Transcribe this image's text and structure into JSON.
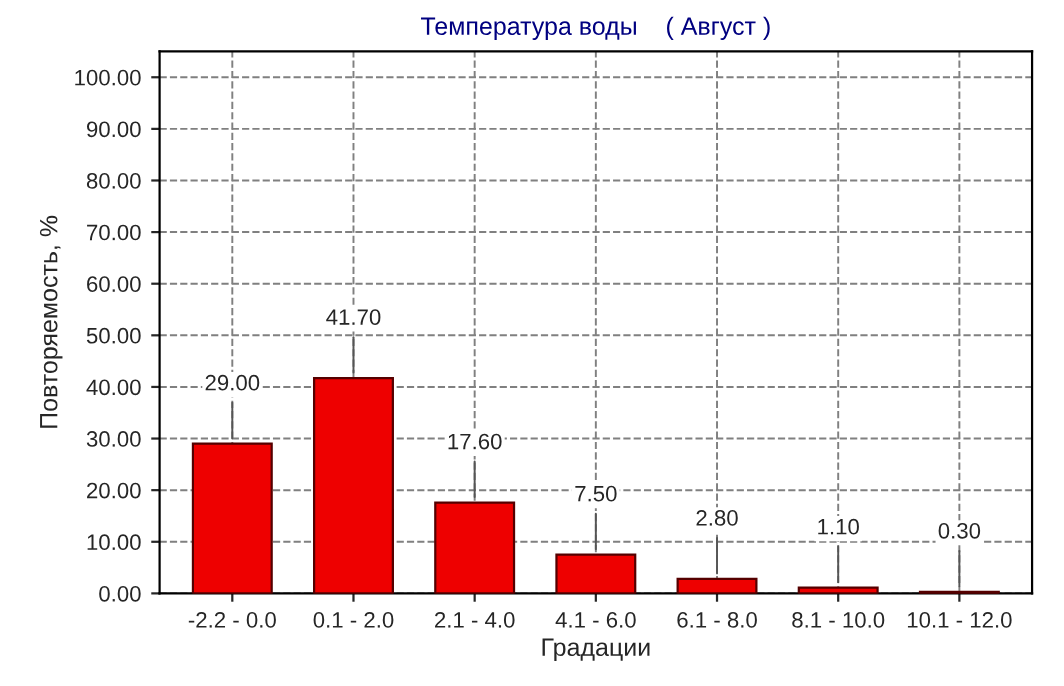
{
  "chart_data": {
    "type": "bar",
    "title": "Температура воды    ( Август )",
    "xlabel": "Градации",
    "ylabel": "Повторяемость, %",
    "categories": [
      "-2.2 - 0.0",
      "0.1 - 2.0",
      "2.1 - 4.0",
      "4.1 - 6.0",
      "6.1 - 8.0",
      "8.1 - 10.0",
      "10.1 - 12.0"
    ],
    "values": [
      29.0,
      41.7,
      17.6,
      7.5,
      2.8,
      1.1,
      0.3
    ],
    "value_labels": [
      "29.00",
      "41.70",
      "17.60",
      "7.50",
      "2.80",
      "1.10",
      "0.30"
    ],
    "color": "#ee0000",
    "ylim": [
      0,
      105
    ],
    "yticks": [
      {
        "value": 0,
        "label": "0.00"
      },
      {
        "value": 10,
        "label": "10.00"
      },
      {
        "value": 20,
        "label": "20.00"
      },
      {
        "value": 30,
        "label": "30.00"
      },
      {
        "value": 40,
        "label": "40.00"
      },
      {
        "value": 50,
        "label": "50.00"
      },
      {
        "value": 60,
        "label": "60.00"
      },
      {
        "value": 70,
        "label": "70.00"
      },
      {
        "value": 80,
        "label": "80.00"
      },
      {
        "value": 90,
        "label": "90.00"
      },
      {
        "value": 100,
        "label": "100.00"
      }
    ],
    "grid": true,
    "line_style": "dashed"
  }
}
